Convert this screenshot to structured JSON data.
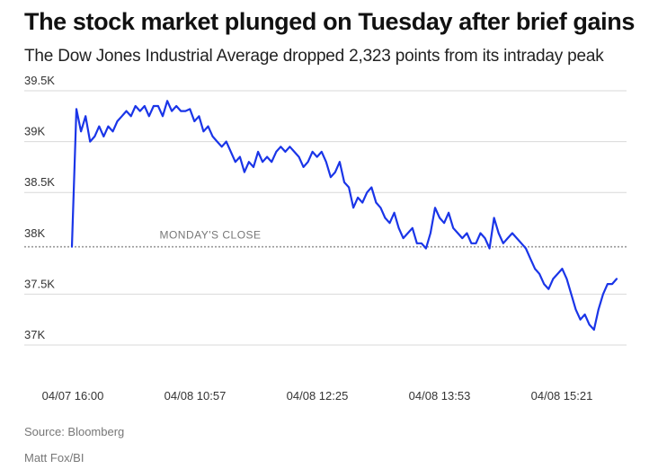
{
  "title": "The stock market plunged on Tuesday after brief gains",
  "subtitle": "The Dow Jones Industrial Average dropped 2,323 points from its intraday peak",
  "source": "Source: Bloomberg",
  "credit": "Matt Fox/BI",
  "colors": {
    "line": "#1a35e8",
    "grid": "#d9d9d9",
    "reference": "#999999"
  },
  "chart_data": {
    "type": "line",
    "title": "The stock market plunged on Tuesday after brief gains",
    "subtitle": "The Dow Jones Industrial Average dropped 2,323 points from its intraday peak",
    "xlabel": "",
    "ylabel": "",
    "x_ticks": [
      "04/07 16:00",
      "04/08 10:57",
      "04/08 12:25",
      "04/08 13:53",
      "04/08 15:21"
    ],
    "y_ticks": [
      37000,
      37500,
      38000,
      38500,
      39000,
      39500
    ],
    "y_tick_labels": [
      "37K",
      "37.5K",
      "38K",
      "38.5K",
      "39K",
      "39.5K"
    ],
    "ylim": [
      36900,
      39500
    ],
    "grid": true,
    "legend": "none",
    "reference_line": {
      "label": "MONDAY'S CLOSE",
      "value": 37966
    },
    "series": [
      {
        "values": [
          37966,
          39320,
          39100,
          39250,
          39000,
          39050,
          39150,
          39050,
          39150,
          39100,
          39200,
          39250,
          39300,
          39250,
          39350,
          39300,
          39350,
          39250,
          39350,
          39350,
          39250,
          39400,
          39300,
          39350,
          39300,
          39300,
          39320,
          39200,
          39250,
          39100,
          39150,
          39050,
          39000,
          38950,
          39000,
          38900,
          38800,
          38850,
          38700,
          38800,
          38750,
          38900,
          38800,
          38850,
          38800,
          38900,
          38950,
          38900,
          38950,
          38900,
          38850,
          38750,
          38800,
          38900,
          38850,
          38900,
          38800,
          38650,
          38700,
          38800,
          38600,
          38550,
          38350,
          38450,
          38400,
          38500,
          38550,
          38400,
          38350,
          38250,
          38200,
          38300,
          38150,
          38050,
          38100,
          38150,
          38000,
          38000,
          37950,
          38100,
          38350,
          38250,
          38200,
          38300,
          38150,
          38100,
          38050,
          38100,
          38000,
          38000,
          38100,
          38050,
          37950,
          38250,
          38100,
          38000,
          38050,
          38100,
          38050,
          38000,
          37950,
          37850,
          37750,
          37700,
          37600,
          37550,
          37650,
          37700,
          37750,
          37650,
          37500,
          37350,
          37250,
          37300,
          37200,
          37150,
          37350,
          37500,
          37600,
          37600,
          37650
        ]
      }
    ]
  }
}
